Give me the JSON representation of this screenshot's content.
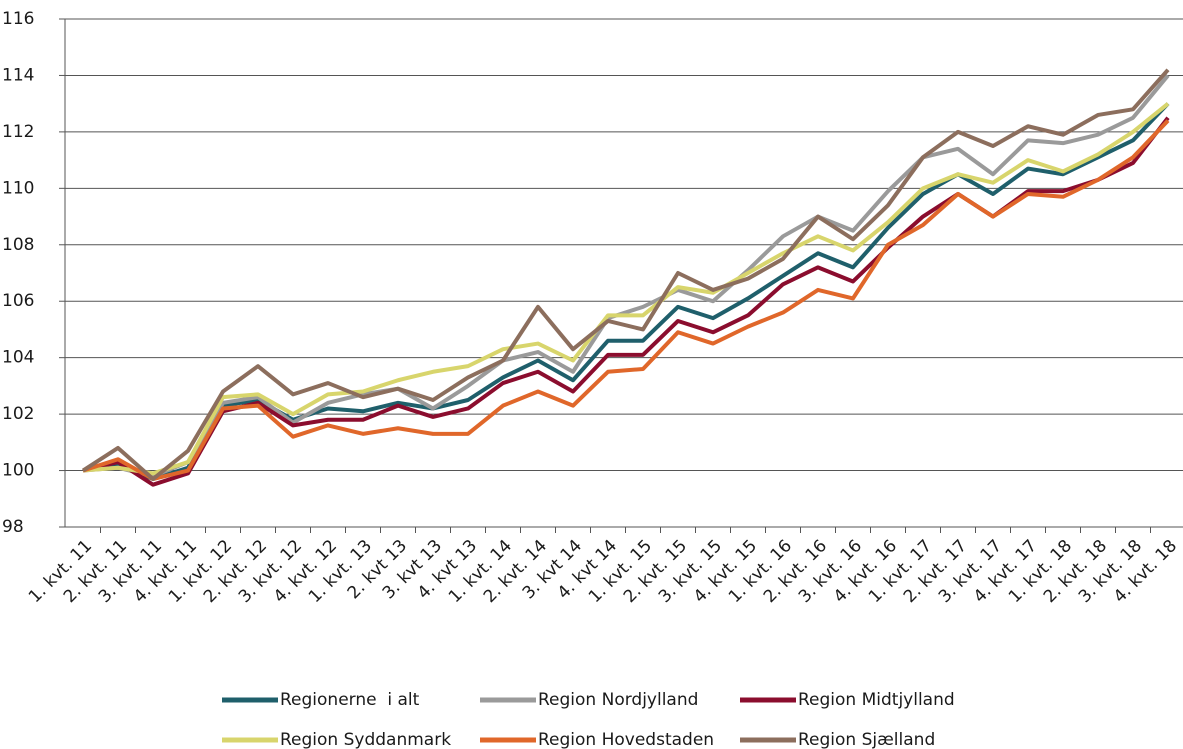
{
  "chart_data": {
    "type": "line",
    "categories": [
      "1. kvt. 11",
      "2. kvt. 11",
      "3. kvt. 11",
      "4. kvt. 11",
      "1. kvt. 12",
      "2. kvt. 12",
      "3. kvt. 12",
      "4. kvt. 12",
      "1. kvt. 13",
      "2. kvt 13",
      "3. kvt 13",
      "4. kvt 13",
      "1. kvt. 14",
      "2. kvt. 14",
      "3. kvt 14",
      "4. kvt 14",
      "1. kvt. 15",
      "2. kvt. 15",
      "3. kvt. 15",
      "4. kvt. 15",
      "1. kvt. 16",
      "2. kvt. 16",
      "3. kvt. 16",
      "4. kvt. 16",
      "1. kvt. 17",
      "2. kvt. 17",
      "3. kvt. 17",
      "4. kvt. 17",
      "1. kvt. 18",
      "2. kvt. 18",
      "3. kvt. 18",
      "4. kvt. 18"
    ],
    "series": [
      {
        "name": "Regionerne  i alt",
        "color": "#1f5f6b",
        "values": [
          100,
          100.2,
          99.7,
          100.1,
          102.3,
          102.5,
          101.8,
          102.2,
          102.1,
          102.4,
          102.2,
          102.5,
          103.3,
          103.9,
          103.2,
          104.6,
          104.6,
          105.8,
          105.4,
          106.1,
          106.9,
          107.7,
          107.2,
          108.6,
          109.8,
          110.5,
          109.8,
          110.7,
          110.5,
          111.1,
          111.7,
          113.0
        ]
      },
      {
        "name": "Region Nordjylland",
        "color": "#9a9a9a",
        "values": [
          100,
          100.1,
          99.8,
          100.3,
          102.4,
          102.6,
          101.7,
          102.4,
          102.7,
          102.9,
          102.2,
          103.0,
          103.9,
          104.2,
          103.5,
          105.4,
          105.8,
          106.4,
          106.0,
          107.1,
          108.3,
          109.0,
          108.5,
          109.9,
          111.1,
          111.4,
          110.5,
          111.7,
          111.6,
          111.9,
          112.5,
          114.0
        ]
      },
      {
        "name": "Region Midtjylland",
        "color": "#8b0d2e",
        "values": [
          100,
          100.3,
          99.5,
          99.9,
          102.1,
          102.4,
          101.6,
          101.8,
          101.8,
          102.3,
          101.9,
          102.2,
          103.1,
          103.5,
          102.8,
          104.1,
          104.1,
          105.3,
          104.9,
          105.5,
          106.6,
          107.2,
          106.7,
          107.9,
          109.0,
          109.8,
          109.0,
          109.9,
          109.9,
          110.3,
          110.9,
          112.5
        ]
      },
      {
        "name": "Region Syddanmark",
        "color": "#d8d56c",
        "values": [
          100,
          100.1,
          99.9,
          100.3,
          102.6,
          102.7,
          102.0,
          102.7,
          102.8,
          103.2,
          103.5,
          103.7,
          104.3,
          104.5,
          103.9,
          105.5,
          105.5,
          106.5,
          106.3,
          107.0,
          107.7,
          108.3,
          107.8,
          108.8,
          110.0,
          110.5,
          110.2,
          111.0,
          110.6,
          111.2,
          112.0,
          113.0
        ]
      },
      {
        "name": "Region Hovedstaden",
        "color": "#e0672a",
        "values": [
          100,
          100.4,
          99.7,
          100.0,
          102.2,
          102.3,
          101.2,
          101.6,
          101.3,
          101.5,
          101.3,
          101.3,
          102.3,
          102.8,
          102.3,
          103.5,
          103.6,
          104.9,
          104.5,
          105.1,
          105.6,
          106.4,
          106.1,
          108.0,
          108.7,
          109.8,
          109.0,
          109.8,
          109.7,
          110.3,
          111.1,
          112.4
        ]
      },
      {
        "name": "Region Sjælland",
        "color": "#8c6e5d",
        "values": [
          100,
          100.8,
          99.7,
          100.7,
          102.8,
          103.7,
          102.7,
          103.1,
          102.6,
          102.9,
          102.5,
          103.3,
          103.9,
          105.8,
          104.3,
          105.3,
          105.0,
          107.0,
          106.4,
          106.8,
          107.5,
          109.0,
          108.2,
          109.4,
          111.1,
          112.0,
          111.5,
          112.2,
          111.9,
          112.6,
          112.8,
          114.2
        ]
      }
    ],
    "ylim": [
      98,
      116
    ],
    "yticks": [
      98,
      100,
      102,
      104,
      106,
      108,
      110,
      112,
      114,
      116
    ],
    "grid": true
  }
}
